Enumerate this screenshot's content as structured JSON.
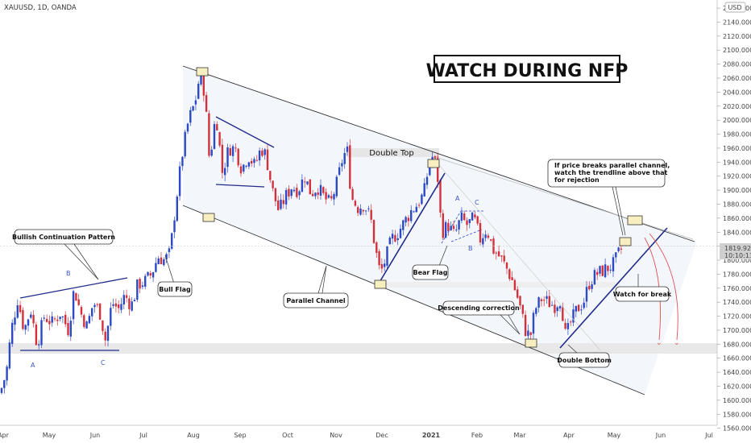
{
  "header": {
    "symbol": "XAUUSD, 1D, OANDA",
    "currency": "USD"
  },
  "title": "WATCH DURING NFP",
  "price_tag": {
    "price": "1819.920",
    "countdown": "10:10:13"
  },
  "annotations": {
    "bullish": "Bullish Continuation Pattern",
    "bull_flag": "Bull Flag",
    "parallel": "Parallel Channel",
    "double_top": "Double Top",
    "bear_flag": "Bear Flag",
    "desc_corr": "Descending correction",
    "double_bottom": "Double Bottom",
    "watch_break": "Watch for break",
    "note_line1": "If price breaks parallel channel,",
    "note_line2": "watch the trendline above that",
    "note_line3": "for rejection"
  },
  "points": [
    "A",
    "B",
    "C",
    "A",
    "B",
    "C"
  ],
  "colors": {
    "up": "#2b49c4",
    "down": "#d4303a",
    "line": "#1f2a8a",
    "channel": "#333333",
    "tag": "#cfcfcf"
  },
  "chart_data": {
    "type": "candlestick",
    "title": "WATCH DURING NFP",
    "symbol": "XAUUSD",
    "timeframe": "1D",
    "source": "OANDA",
    "x_ticks": [
      "Apr",
      "May",
      "Jun",
      "Jul",
      "Aug",
      "Sep",
      "Oct",
      "Nov",
      "Dec",
      "2021",
      "Feb",
      "Mar",
      "Apr",
      "May",
      "Jun",
      "Jul"
    ],
    "y_ticks": [
      1560,
      1580,
      1600,
      1620,
      1640,
      1660,
      1680,
      1700,
      1720,
      1740,
      1760,
      1780,
      1800,
      1820,
      1840,
      1860,
      1880,
      1900,
      1920,
      1940,
      1960,
      1980,
      2000,
      2020,
      2040,
      2060,
      2080,
      2100,
      2120,
      2140,
      2160
    ],
    "ylim": [
      1555,
      2167
    ],
    "last_price": 1819.92,
    "close_path": [
      {
        "x": 0,
        "y": 1610
      },
      {
        "x": 8,
        "y": 1640
      },
      {
        "x": 14,
        "y": 1700
      },
      {
        "x": 22,
        "y": 1745
      },
      {
        "x": 30,
        "y": 1700
      },
      {
        "x": 38,
        "y": 1730
      },
      {
        "x": 46,
        "y": 1680
      },
      {
        "x": 55,
        "y": 1720
      },
      {
        "x": 65,
        "y": 1710
      },
      {
        "x": 75,
        "y": 1725
      },
      {
        "x": 85,
        "y": 1700
      },
      {
        "x": 92,
        "y": 1760
      },
      {
        "x": 100,
        "y": 1725
      },
      {
        "x": 108,
        "y": 1705
      },
      {
        "x": 116,
        "y": 1740
      },
      {
        "x": 124,
        "y": 1725
      },
      {
        "x": 131,
        "y": 1685
      },
      {
        "x": 139,
        "y": 1740
      },
      {
        "x": 147,
        "y": 1730
      },
      {
        "x": 155,
        "y": 1750
      },
      {
        "x": 163,
        "y": 1735
      },
      {
        "x": 171,
        "y": 1765
      },
      {
        "x": 180,
        "y": 1770
      },
      {
        "x": 188,
        "y": 1780
      },
      {
        "x": 196,
        "y": 1805
      },
      {
        "x": 204,
        "y": 1800
      },
      {
        "x": 211,
        "y": 1810
      },
      {
        "x": 218,
        "y": 1880
      },
      {
        "x": 226,
        "y": 1950
      },
      {
        "x": 234,
        "y": 2000
      },
      {
        "x": 242,
        "y": 2025
      },
      {
        "x": 248,
        "y": 2065
      },
      {
        "x": 254,
        "y": 2040
      },
      {
        "x": 260,
        "y": 1940
      },
      {
        "x": 268,
        "y": 2010
      },
      {
        "x": 276,
        "y": 1925
      },
      {
        "x": 284,
        "y": 1960
      },
      {
        "x": 292,
        "y": 1960
      },
      {
        "x": 300,
        "y": 1930
      },
      {
        "x": 308,
        "y": 1950
      },
      {
        "x": 316,
        "y": 1935
      },
      {
        "x": 324,
        "y": 1960
      },
      {
        "x": 330,
        "y": 1950
      },
      {
        "x": 338,
        "y": 1900
      },
      {
        "x": 346,
        "y": 1870
      },
      {
        "x": 354,
        "y": 1890
      },
      {
        "x": 362,
        "y": 1905
      },
      {
        "x": 370,
        "y": 1900
      },
      {
        "x": 378,
        "y": 1920
      },
      {
        "x": 386,
        "y": 1895
      },
      {
        "x": 394,
        "y": 1905
      },
      {
        "x": 402,
        "y": 1890
      },
      {
        "x": 410,
        "y": 1880
      },
      {
        "x": 418,
        "y": 1910
      },
      {
        "x": 426,
        "y": 1950
      },
      {
        "x": 431,
        "y": 1955
      },
      {
        "x": 436,
        "y": 1890
      },
      {
        "x": 444,
        "y": 1875
      },
      {
        "x": 452,
        "y": 1880
      },
      {
        "x": 460,
        "y": 1860
      },
      {
        "x": 466,
        "y": 1815
      },
      {
        "x": 472,
        "y": 1780
      },
      {
        "x": 478,
        "y": 1800
      },
      {
        "x": 486,
        "y": 1830
      },
      {
        "x": 494,
        "y": 1840
      },
      {
        "x": 502,
        "y": 1855
      },
      {
        "x": 510,
        "y": 1870
      },
      {
        "x": 518,
        "y": 1880
      },
      {
        "x": 526,
        "y": 1895
      },
      {
        "x": 533,
        "y": 1940
      },
      {
        "x": 538,
        "y": 1950
      },
      {
        "x": 543,
        "y": 1920
      },
      {
        "x": 548,
        "y": 1840
      },
      {
        "x": 556,
        "y": 1850
      },
      {
        "x": 564,
        "y": 1835
      },
      {
        "x": 572,
        "y": 1860
      },
      {
        "x": 580,
        "y": 1850
      },
      {
        "x": 588,
        "y": 1860
      },
      {
        "x": 596,
        "y": 1830
      },
      {
        "x": 604,
        "y": 1845
      },
      {
        "x": 612,
        "y": 1815
      },
      {
        "x": 620,
        "y": 1805
      },
      {
        "x": 628,
        "y": 1790
      },
      {
        "x": 636,
        "y": 1770
      },
      {
        "x": 644,
        "y": 1740
      },
      {
        "x": 652,
        "y": 1700
      },
      {
        "x": 658,
        "y": 1690
      },
      {
        "x": 664,
        "y": 1730
      },
      {
        "x": 672,
        "y": 1745
      },
      {
        "x": 680,
        "y": 1740
      },
      {
        "x": 688,
        "y": 1735
      },
      {
        "x": 696,
        "y": 1745
      },
      {
        "x": 702,
        "y": 1690
      },
      {
        "x": 708,
        "y": 1710
      },
      {
        "x": 716,
        "y": 1730
      },
      {
        "x": 724,
        "y": 1740
      },
      {
        "x": 732,
        "y": 1770
      },
      {
        "x": 740,
        "y": 1780
      },
      {
        "x": 748,
        "y": 1785
      },
      {
        "x": 756,
        "y": 1790
      },
      {
        "x": 762,
        "y": 1795
      },
      {
        "x": 768,
        "y": 1810
      },
      {
        "x": 774,
        "y": 1820
      }
    ],
    "annotations": [
      "Bullish Continuation Pattern",
      "Bull Flag",
      "Parallel Channel",
      "Double Top",
      "Bear Flag",
      "Descending correction",
      "Double Bottom",
      "Watch for break"
    ]
  }
}
